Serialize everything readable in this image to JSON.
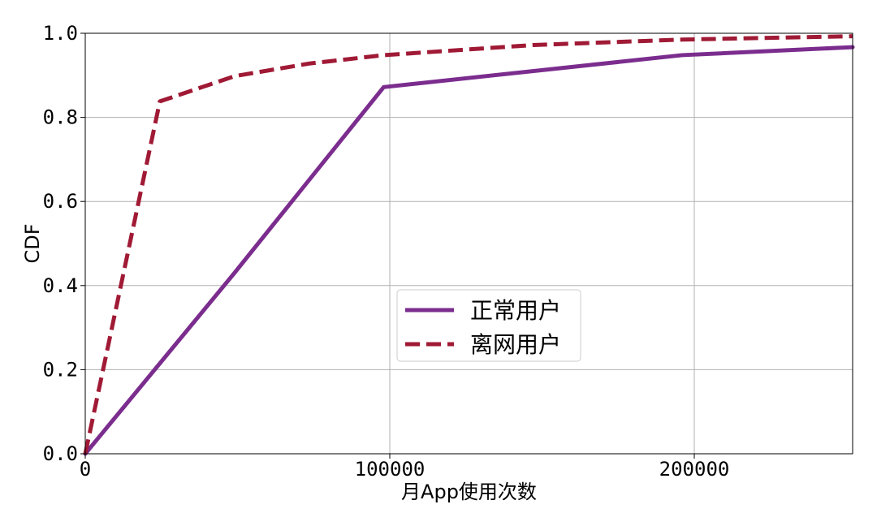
{
  "chart_data": {
    "type": "line",
    "title": "",
    "xlabel": "月App使用次数",
    "ylabel": "CDF",
    "xlim": [
      0,
      252000
    ],
    "ylim": [
      0,
      1.0
    ],
    "xticks": [
      0,
      100000,
      200000
    ],
    "xtick_labels": [
      "0",
      "100000",
      "200000"
    ],
    "yticks": [
      0,
      0.2,
      0.4,
      0.6,
      0.8,
      1.0
    ],
    "ytick_labels": [
      "0.0",
      "0.2",
      "0.4",
      "0.6",
      "0.8",
      "1.0"
    ],
    "grid": true,
    "legend_position": "center-right",
    "series": [
      {
        "name": "正常用户",
        "color": "#7b2d8e",
        "line_style": "solid",
        "x": [
          0,
          49000,
          98000,
          196000,
          252000
        ],
        "y": [
          0.0,
          0.43,
          0.872,
          0.948,
          0.967
        ]
      },
      {
        "name": "离网用户",
        "color": "#a01a35",
        "line_style": "dashed",
        "x": [
          0,
          24500,
          49000,
          73500,
          98000,
          147000,
          196000,
          252000
        ],
        "y": [
          0.0,
          0.838,
          0.898,
          0.928,
          0.948,
          0.972,
          0.985,
          0.993
        ]
      }
    ]
  }
}
